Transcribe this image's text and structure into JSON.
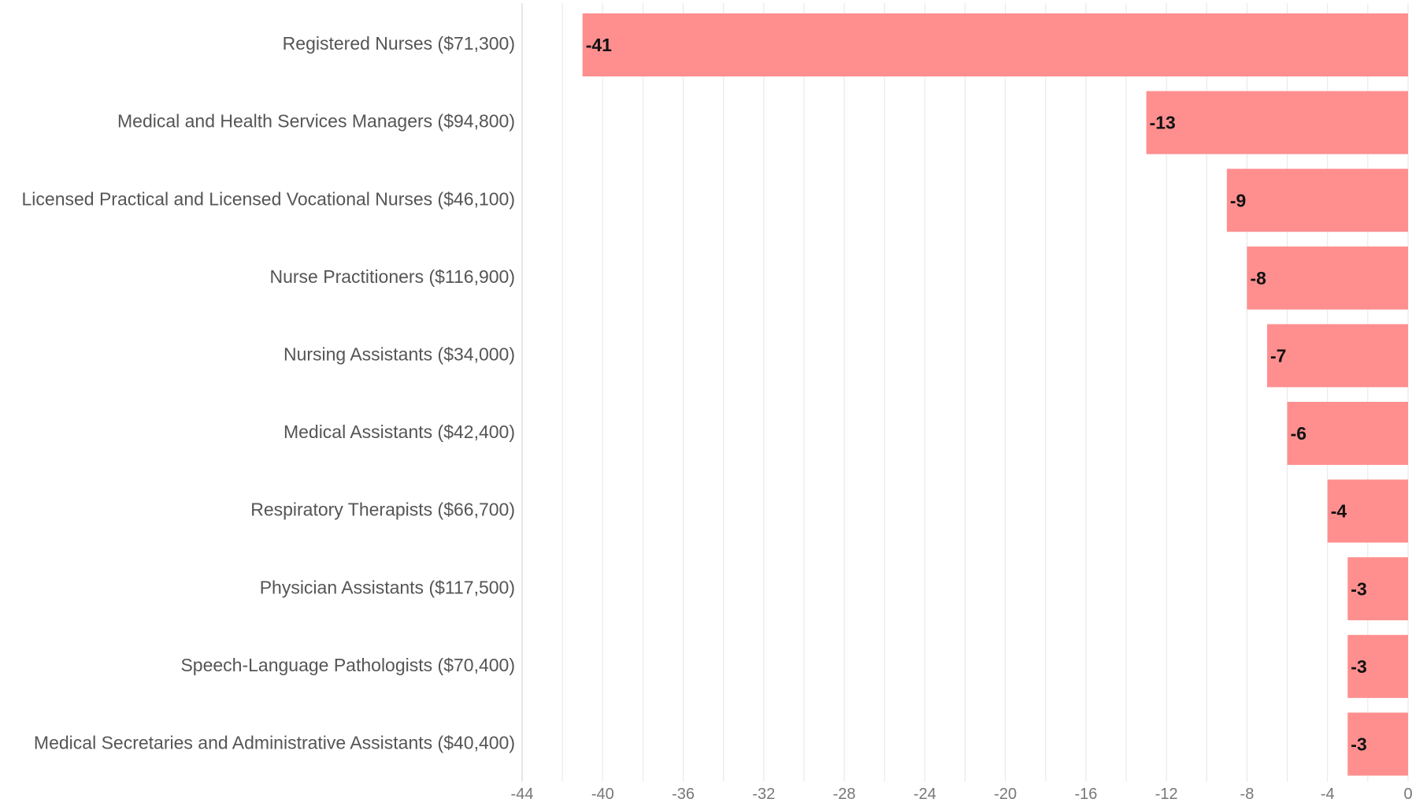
{
  "chart_data": {
    "type": "bar",
    "orientation": "horizontal",
    "categories": [
      "Registered Nurses ($71,300)",
      "Medical and Health Services Managers ($94,800)",
      "Licensed Practical and Licensed Vocational Nurses ($46,100)",
      "Nurse Practitioners ($116,900)",
      "Nursing Assistants ($34,000)",
      "Medical Assistants ($42,400)",
      "Respiratory Therapists ($66,700)",
      "Physician Assistants ($117,500)",
      "Speech-Language Pathologists ($70,400)",
      "Medical Secretaries and Administrative Assistants ($40,400)"
    ],
    "values": [
      -41,
      -13,
      -9,
      -8,
      -7,
      -6,
      -4,
      -3,
      -3,
      -3
    ],
    "data_labels": [
      "-41",
      "-13",
      "-9",
      "-8",
      "-7",
      "-6",
      "-4",
      "-3",
      "-3",
      "-3"
    ],
    "xlim": [
      -44,
      0
    ],
    "x_ticks": [
      -44,
      -40,
      -36,
      -32,
      -28,
      -24,
      -20,
      -16,
      -12,
      -8,
      -4,
      0
    ],
    "x_tick_labels": [
      "-44",
      "-40",
      "-36",
      "-32",
      "-28",
      "-24",
      "-20",
      "-16",
      "-12",
      "-8",
      "-4",
      "0"
    ],
    "grid": true,
    "bar_color": "#ff8f8f",
    "grid_color": "#e6e6e6"
  }
}
